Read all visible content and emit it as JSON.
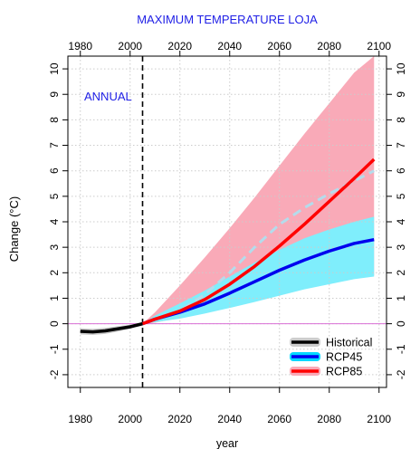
{
  "chart_data": {
    "type": "line",
    "title": "MAXIMUM TEMPERATURE LOJA",
    "xlabel": "year",
    "ylabel": "Change (°C)",
    "annotation": "ANNUAL",
    "xlim": [
      1975,
      2103
    ],
    "ylim": [
      -2.5,
      10.5
    ],
    "x_ticks": [
      1980,
      2000,
      2020,
      2040,
      2060,
      2080,
      2100
    ],
    "x_tick_labels": [
      "1980",
      "2000",
      "2020",
      "2040",
      "2060",
      "2080",
      "2100"
    ],
    "y_ticks": [
      -2,
      -1,
      0,
      1,
      2,
      3,
      4,
      5,
      6,
      7,
      8,
      9,
      10
    ],
    "y_tick_labels": [
      "-2",
      "-1",
      "0",
      "1",
      "2",
      "3",
      "4",
      "5",
      "6",
      "7",
      "8",
      "9",
      "10"
    ],
    "grid": true,
    "reference_year": 2005,
    "zero_line": true,
    "legend_position": "bottom-right",
    "colors": {
      "title": "#1f1fe6",
      "annotation": "#1f1fe6",
      "historical": "#000000",
      "historical_band": "#cccccc",
      "rcp45": "#0000ee",
      "rcp45_band": "#7feefc",
      "rcp85": "#ff0000",
      "rcp85_band": "#f9aab8",
      "dashed_median": "#b4dcec",
      "zero_line": "#da70d6",
      "grid": "#cccccc"
    },
    "legend": [
      {
        "label": "Historical",
        "color": "#000000",
        "band": "#cccccc"
      },
      {
        "label": "RCP45",
        "color": "#0000ee",
        "band": "#00d8ff"
      },
      {
        "label": "RCP85",
        "color": "#ff0000",
        "band": "#f9aab8"
      }
    ],
    "series": [
      {
        "name": "Historical",
        "x": [
          1980,
          1985,
          1990,
          1995,
          2000,
          2005
        ],
        "values": [
          -0.3,
          -0.32,
          -0.28,
          -0.2,
          -0.12,
          0.0
        ],
        "band_low": [
          -0.42,
          -0.44,
          -0.4,
          -0.31,
          -0.2,
          -0.02
        ],
        "band_high": [
          -0.18,
          -0.2,
          -0.16,
          -0.1,
          -0.04,
          0.02
        ]
      },
      {
        "name": "RCP45",
        "x": [
          2005,
          2010,
          2020,
          2030,
          2040,
          2050,
          2060,
          2070,
          2080,
          2090,
          2098
        ],
        "values": [
          0.0,
          0.18,
          0.45,
          0.78,
          1.2,
          1.65,
          2.1,
          2.5,
          2.85,
          3.15,
          3.3
        ],
        "band_low": [
          0.0,
          0.06,
          0.2,
          0.4,
          0.62,
          0.85,
          1.1,
          1.35,
          1.55,
          1.75,
          1.85
        ],
        "band_high": [
          0.0,
          0.32,
          0.8,
          1.3,
          1.85,
          2.4,
          2.9,
          3.35,
          3.7,
          4.0,
          4.2
        ]
      },
      {
        "name": "RCP85",
        "x": [
          2005,
          2010,
          2020,
          2030,
          2040,
          2050,
          2060,
          2070,
          2080,
          2090,
          2098
        ],
        "values": [
          0.0,
          0.18,
          0.5,
          0.95,
          1.55,
          2.25,
          3.05,
          3.9,
          4.8,
          5.7,
          6.45
        ],
        "band_low": [
          0.0,
          0.04,
          0.25,
          0.45,
          0.7,
          0.95,
          1.2,
          1.45,
          1.65,
          1.8,
          1.9
        ],
        "band_high": [
          0.0,
          0.45,
          1.5,
          2.6,
          3.75,
          4.95,
          6.2,
          7.45,
          8.65,
          9.85,
          10.5
        ]
      },
      {
        "name": "Dashed median",
        "x": [
          2005,
          2020,
          2030,
          2040,
          2050,
          2060,
          2070,
          2080,
          2090,
          2098
        ],
        "values": [
          0.0,
          0.5,
          1.15,
          2.0,
          3.0,
          3.9,
          4.55,
          5.1,
          5.6,
          6.0
        ]
      }
    ]
  }
}
